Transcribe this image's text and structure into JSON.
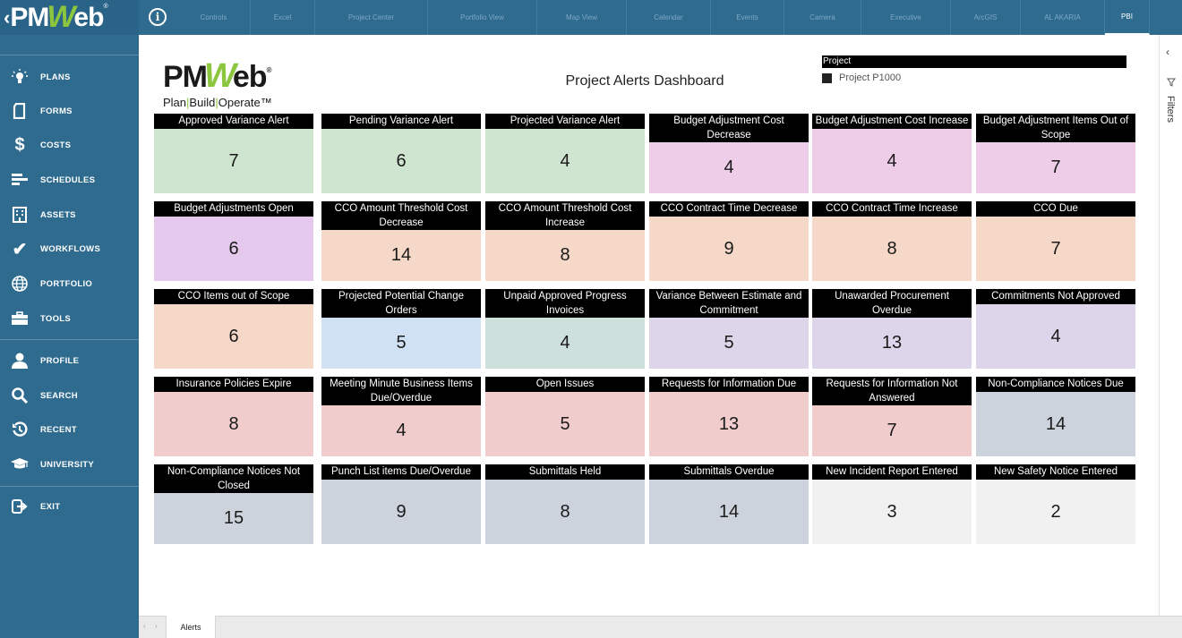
{
  "app": {
    "logo_text_left": "PM",
    "logo_text_w": "W",
    "logo_text_right": "eb",
    "logo_reg": "®",
    "info_label": "i"
  },
  "top_tabs": [
    "Controls",
    "Excel",
    "Project Center",
    "Portfolio View",
    "Map View",
    "Calendar",
    "Events",
    "Camera",
    "Executive",
    "ArcGIS",
    "AL AKARIA",
    "PBI"
  ],
  "active_tab_index": 11,
  "sidebar": {
    "items": [
      {
        "label": "PLANS",
        "icon": "lightbulb-icon"
      },
      {
        "label": "FORMS",
        "icon": "document-icon"
      },
      {
        "label": "COSTS",
        "icon": "dollar-icon"
      },
      {
        "label": "SCHEDULES",
        "icon": "gantt-icon"
      },
      {
        "label": "ASSETS",
        "icon": "building-icon"
      },
      {
        "label": "WORKFLOWS",
        "icon": "checkmark-icon"
      },
      {
        "label": "PORTFOLIO",
        "icon": "globe-icon"
      },
      {
        "label": "TOOLS",
        "icon": "toolbox-icon"
      },
      {
        "label": "PROFILE",
        "icon": "user-icon"
      },
      {
        "label": "SEARCH",
        "icon": "search-icon"
      },
      {
        "label": "RECENT",
        "icon": "history-icon"
      },
      {
        "label": "UNIVERSITY",
        "icon": "graduation-cap-icon"
      },
      {
        "label": "EXIT",
        "icon": "exit-icon"
      }
    ]
  },
  "report": {
    "logo_main_left": "PM",
    "logo_main_w": "W",
    "logo_main_right": "eb",
    "logo_reg": "®",
    "tagline_1": "Plan",
    "tagline_sep": "|",
    "tagline_2": "Build",
    "tagline_3": "Operate",
    "tagline_tm": "™",
    "title": "Project Alerts Dashboard",
    "slicer_header": "Project",
    "slicer_option": "Project P1000"
  },
  "cards": [
    {
      "title": "Approved Variance Alert",
      "value": "7",
      "color": "#cfe5d0"
    },
    {
      "title": "Pending Variance Alert",
      "value": "6",
      "color": "#cfe5d0"
    },
    {
      "title": "Projected Variance Alert",
      "value": "4",
      "color": "#cfe5d0"
    },
    {
      "title": "Budget Adjustment Cost Decrease",
      "value": "4",
      "color": "#eecde8"
    },
    {
      "title": "Budget Adjustment Cost Increase",
      "value": "4",
      "color": "#eecde8"
    },
    {
      "title": "Budget Adjustment Items Out of Scope",
      "value": "7",
      "color": "#eecde8"
    },
    {
      "title": "Budget Adjustments Open",
      "value": "6",
      "color": "#e4c9ec"
    },
    {
      "title": "CCO Amount Threshold Cost Decrease",
      "value": "14",
      "color": "#f6d8c8"
    },
    {
      "title": "CCO Amount Threshold Cost Increase",
      "value": "8",
      "color": "#f6d8c8"
    },
    {
      "title": "CCO Contract Time Decrease",
      "value": "9",
      "color": "#f6d8c8"
    },
    {
      "title": "CCO Contract Time Increase",
      "value": "8",
      "color": "#f6d8c8"
    },
    {
      "title": "CCO Due",
      "value": "7",
      "color": "#f6d8c8"
    },
    {
      "title": "CCO Items out of Scope",
      "value": "6",
      "color": "#f6d8c8"
    },
    {
      "title": "Projected Potential Change Orders",
      "value": "5",
      "color": "#cfe1f2"
    },
    {
      "title": "Unpaid Approved Progress Invoices",
      "value": "4",
      "color": "#cde0dc"
    },
    {
      "title": "Variance Between Estimate and Commitment",
      "value": "5",
      "color": "#ddd5ea"
    },
    {
      "title": "Unawarded Procurement Overdue",
      "value": "13",
      "color": "#ddd5ea"
    },
    {
      "title": "Commitments Not Approved",
      "value": "4",
      "color": "#ddd5ea"
    },
    {
      "title": "Insurance Policies Expire",
      "value": "8",
      "color": "#f1cccc"
    },
    {
      "title": "Meeting Minute Business Items Due/Overdue",
      "value": "4",
      "color": "#f1cccc"
    },
    {
      "title": "Open Issues",
      "value": "5",
      "color": "#f1cccc"
    },
    {
      "title": "Requests for Information Due",
      "value": "13",
      "color": "#f1cccc"
    },
    {
      "title": "Requests for Information Not Answered",
      "value": "7",
      "color": "#f1cccc"
    },
    {
      "title": "Non-Compliance Notices Due",
      "value": "14",
      "color": "#cdd3dc"
    },
    {
      "title": "Non-Compliance Notices Not Closed",
      "value": "15",
      "color": "#cdd3dc"
    },
    {
      "title": "Punch List items Due/Overdue",
      "value": "9",
      "color": "#cdd3dc"
    },
    {
      "title": "Submittals Held",
      "value": "8",
      "color": "#cdd3dc"
    },
    {
      "title": "Submittals Overdue",
      "value": "14",
      "color": "#cdd3dc"
    },
    {
      "title": "New Incident Report Entered",
      "value": "3",
      "color": "#f1f1f1"
    },
    {
      "title": "New Safety Notice Entered",
      "value": "2",
      "color": "#f1f1f1"
    }
  ],
  "filters": {
    "label": "Filters"
  },
  "bottom": {
    "tab_label": "Alerts",
    "nav_prev": "‹",
    "nav_next": "›"
  }
}
